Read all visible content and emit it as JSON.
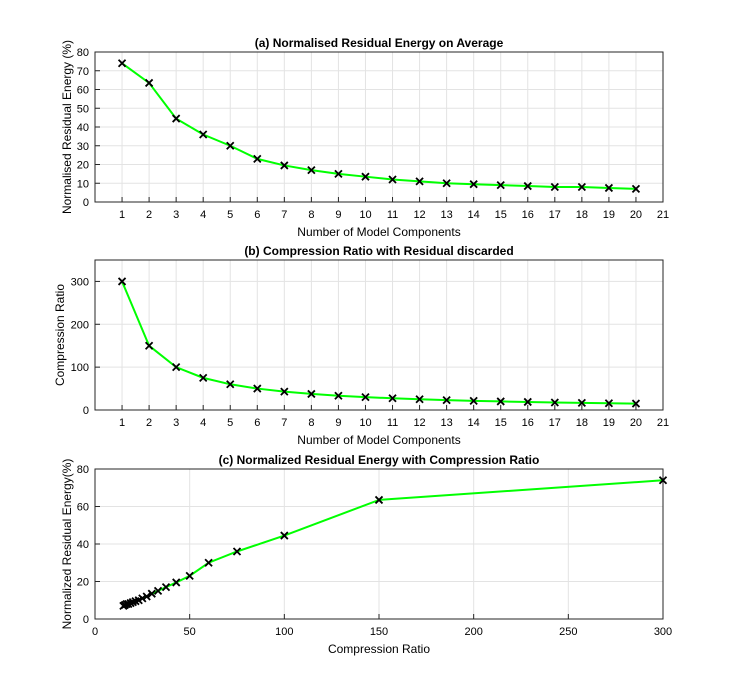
{
  "chart_data": [
    {
      "type": "line",
      "title": "(a) Normalised Residual Energy on Average",
      "xlabel": "Number of Model Components",
      "ylabel": "Normalised Residual Energy (%)",
      "xlim": [
        0,
        21
      ],
      "ylim": [
        0,
        80
      ],
      "xticks": [
        1,
        2,
        3,
        4,
        5,
        6,
        7,
        8,
        9,
        10,
        11,
        12,
        13,
        14,
        15,
        16,
        17,
        18,
        19,
        20,
        21
      ],
      "yticks": [
        0,
        10,
        20,
        30,
        40,
        50,
        60,
        70,
        80
      ],
      "grid": true,
      "line_color": "#00ff00",
      "marker": "x",
      "marker_color": "#000000",
      "x": [
        1,
        2,
        3,
        4,
        5,
        6,
        7,
        8,
        9,
        10,
        11,
        12,
        13,
        14,
        15,
        16,
        17,
        18,
        19,
        20
      ],
      "y": [
        74,
        63.5,
        44.5,
        36,
        30,
        23,
        19.5,
        17,
        15,
        13.5,
        12,
        11,
        10,
        9.5,
        9,
        8.5,
        8,
        8,
        7.5,
        7
      ]
    },
    {
      "type": "line",
      "title": "(b) Compression Ratio with Residual discarded",
      "xlabel": "Number of Model Components",
      "ylabel": "Compression Ratio",
      "xlim": [
        0,
        21
      ],
      "ylim": [
        0,
        350
      ],
      "xticks": [
        1,
        2,
        3,
        4,
        5,
        6,
        7,
        8,
        9,
        10,
        11,
        12,
        13,
        14,
        15,
        16,
        17,
        18,
        19,
        20,
        21
      ],
      "yticks": [
        0,
        100,
        200,
        300
      ],
      "grid": true,
      "line_color": "#00ff00",
      "marker": "x",
      "marker_color": "#000000",
      "x": [
        1,
        2,
        3,
        4,
        5,
        6,
        7,
        8,
        9,
        10,
        11,
        12,
        13,
        14,
        15,
        16,
        17,
        18,
        19,
        20
      ],
      "y": [
        300,
        150,
        100,
        75,
        60,
        50,
        42.9,
        37.5,
        33.3,
        30,
        27.3,
        25,
        23.1,
        21.4,
        20,
        18.8,
        17.6,
        16.7,
        15.8,
        15
      ]
    },
    {
      "type": "line",
      "title": "(c) Normalized Residual Energy with Compression Ratio",
      "xlabel": "Compression Ratio",
      "ylabel": "Normalized Residual Energy(%)",
      "xlim": [
        0,
        300
      ],
      "ylim": [
        0,
        80
      ],
      "xticks": [
        0,
        50,
        100,
        150,
        200,
        250,
        300
      ],
      "yticks": [
        0,
        20,
        40,
        60,
        80
      ],
      "grid": true,
      "line_color": "#00ff00",
      "marker": "x",
      "marker_color": "#000000",
      "x": [
        300,
        150,
        100,
        75,
        60,
        50,
        42.9,
        37.5,
        33.3,
        30,
        27.3,
        25,
        23.1,
        21.4,
        20,
        18.8,
        17.6,
        16.7,
        15.8,
        15
      ],
      "y": [
        74,
        63.5,
        44.5,
        36,
        30,
        23,
        19.5,
        17,
        15,
        13.5,
        12,
        11,
        10,
        9.5,
        9,
        8.5,
        8,
        8,
        7.5,
        7
      ]
    }
  ]
}
